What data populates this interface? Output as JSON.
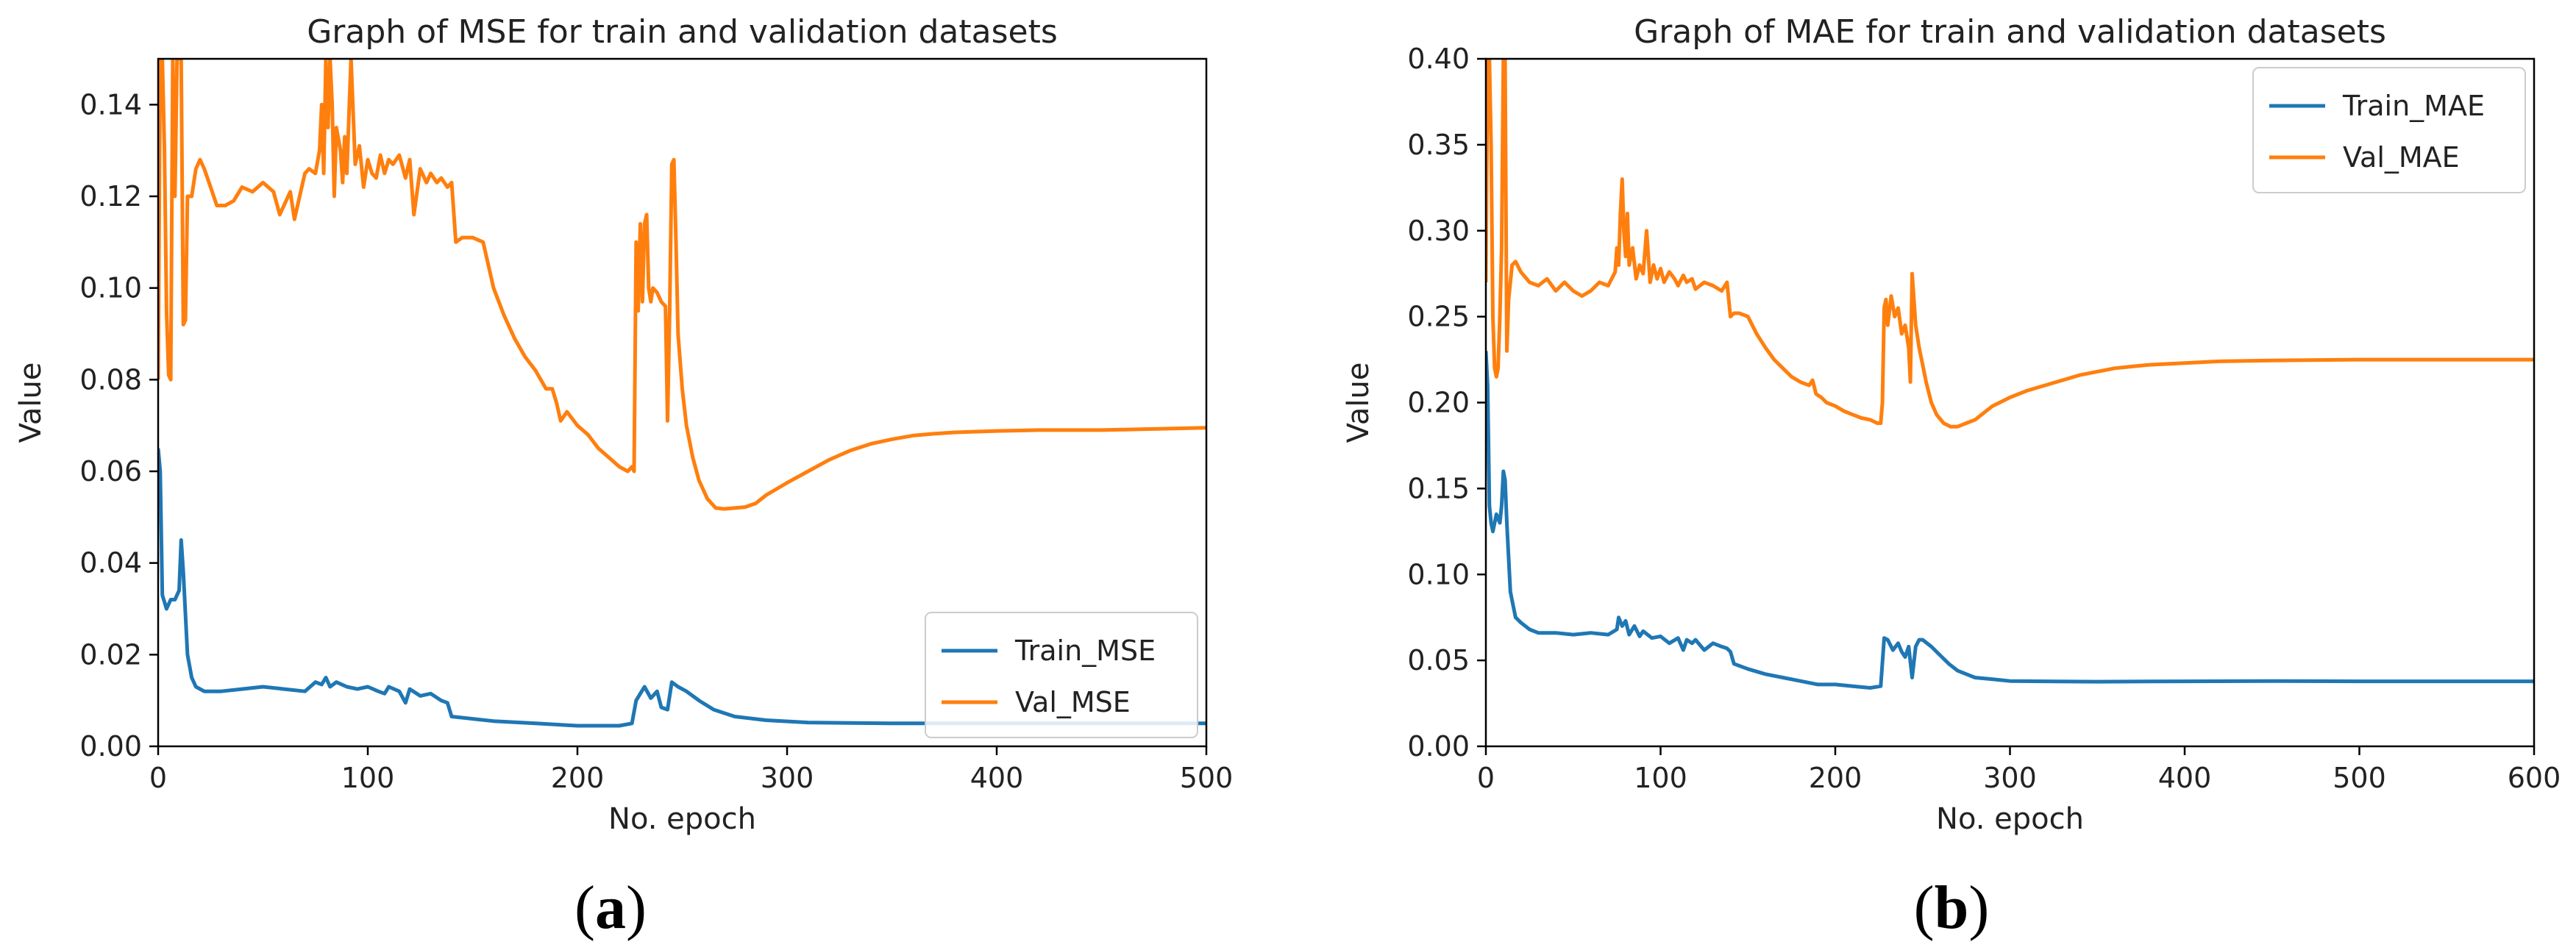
{
  "chart_data": [
    {
      "type": "line",
      "title": "Graph of MSE for train and validation datasets",
      "xlabel": "No. epoch",
      "ylabel": "Value",
      "xlim": [
        0,
        500
      ],
      "ylim": [
        0,
        0.15
      ],
      "xticks": [
        0,
        100,
        200,
        300,
        400,
        500
      ],
      "xtick_labels": [
        "0",
        "100",
        "200",
        "300",
        "400",
        "500"
      ],
      "yticks": [
        0,
        0.02,
        0.04,
        0.06,
        0.08,
        0.1,
        0.12,
        0.14
      ],
      "ytick_labels": [
        "0.00",
        "0.02",
        "0.04",
        "0.06",
        "0.08",
        "0.10",
        "0.12",
        "0.14"
      ],
      "legend_position": "lower-right",
      "panel_label": "a",
      "series": [
        {
          "name": "Train_MSE",
          "color": "#1f77b4",
          "x": [
            0,
            1,
            2,
            4,
            6,
            8,
            10,
            11,
            12,
            14,
            16,
            18,
            22,
            30,
            40,
            50,
            60,
            70,
            75,
            78,
            80,
            82,
            85,
            90,
            95,
            100,
            105,
            108,
            110,
            115,
            118,
            120,
            125,
            130,
            135,
            138,
            140,
            150,
            160,
            180,
            200,
            220,
            226,
            228,
            230,
            232,
            235,
            238,
            240,
            243,
            245,
            248,
            252,
            258,
            265,
            275,
            290,
            310,
            350,
            400,
            450,
            500
          ],
          "y": [
            0.065,
            0.06,
            0.033,
            0.03,
            0.032,
            0.032,
            0.034,
            0.045,
            0.038,
            0.02,
            0.015,
            0.013,
            0.012,
            0.012,
            0.0125,
            0.013,
            0.0125,
            0.012,
            0.014,
            0.0135,
            0.015,
            0.013,
            0.014,
            0.013,
            0.0125,
            0.013,
            0.012,
            0.0115,
            0.013,
            0.012,
            0.0095,
            0.0125,
            0.011,
            0.0115,
            0.01,
            0.0095,
            0.0065,
            0.006,
            0.0055,
            0.005,
            0.0045,
            0.0045,
            0.005,
            0.01,
            0.0115,
            0.013,
            0.0105,
            0.012,
            0.0085,
            0.008,
            0.014,
            0.013,
            0.012,
            0.01,
            0.008,
            0.0065,
            0.0057,
            0.0052,
            0.005,
            0.005,
            0.005,
            0.005
          ]
        },
        {
          "name": "Val_MSE",
          "color": "#ff7f0e",
          "x": [
            0,
            1,
            2,
            3,
            4,
            5,
            6,
            7,
            8,
            9,
            10,
            11,
            12,
            13,
            14,
            16,
            18,
            20,
            22,
            25,
            28,
            32,
            36,
            40,
            45,
            50,
            55,
            58,
            60,
            63,
            65,
            68,
            70,
            72,
            75,
            77,
            78,
            79,
            80,
            81,
            82,
            83,
            84,
            85,
            87,
            88,
            89,
            90,
            92,
            94,
            96,
            98,
            100,
            102,
            104,
            106,
            108,
            110,
            112,
            115,
            118,
            120,
            122,
            125,
            128,
            130,
            133,
            135,
            138,
            140,
            142,
            145,
            148,
            150,
            155,
            160,
            165,
            170,
            175,
            180,
            185,
            186,
            188,
            190,
            192,
            195,
            200,
            205,
            210,
            215,
            220,
            224,
            226,
            227,
            228,
            229,
            230,
            231,
            232,
            233,
            234,
            235,
            236,
            238,
            240,
            242,
            243,
            244,
            245,
            246,
            247,
            248,
            250,
            252,
            255,
            258,
            262,
            266,
            270,
            275,
            280,
            285,
            290,
            300,
            310,
            320,
            330,
            340,
            350,
            360,
            370,
            380,
            400,
            420,
            450,
            500
          ],
          "y": [
            0.08,
            0.15,
            0.15,
            0.13,
            0.095,
            0.081,
            0.08,
            0.15,
            0.12,
            0.15,
            0.15,
            0.15,
            0.092,
            0.093,
            0.12,
            0.12,
            0.126,
            0.128,
            0.126,
            0.122,
            0.118,
            0.118,
            0.119,
            0.122,
            0.121,
            0.123,
            0.121,
            0.116,
            0.118,
            0.121,
            0.115,
            0.121,
            0.125,
            0.126,
            0.125,
            0.13,
            0.14,
            0.125,
            0.15,
            0.135,
            0.15,
            0.14,
            0.12,
            0.135,
            0.13,
            0.123,
            0.133,
            0.125,
            0.15,
            0.127,
            0.131,
            0.122,
            0.128,
            0.125,
            0.124,
            0.129,
            0.125,
            0.128,
            0.127,
            0.129,
            0.124,
            0.128,
            0.116,
            0.126,
            0.123,
            0.125,
            0.123,
            0.124,
            0.122,
            0.123,
            0.11,
            0.111,
            0.111,
            0.111,
            0.11,
            0.1,
            0.094,
            0.089,
            0.085,
            0.082,
            0.078,
            0.078,
            0.078,
            0.075,
            0.071,
            0.073,
            0.07,
            0.068,
            0.065,
            0.063,
            0.061,
            0.06,
            0.061,
            0.06,
            0.11,
            0.095,
            0.114,
            0.097,
            0.114,
            0.116,
            0.1,
            0.097,
            0.1,
            0.099,
            0.097,
            0.096,
            0.071,
            0.095,
            0.127,
            0.128,
            0.11,
            0.09,
            0.078,
            0.07,
            0.063,
            0.058,
            0.054,
            0.052,
            0.0518,
            0.052,
            0.0522,
            0.053,
            0.0548,
            0.0575,
            0.06,
            0.0625,
            0.0645,
            0.066,
            0.067,
            0.0678,
            0.0682,
            0.0685,
            0.0688,
            0.069,
            0.069,
            0.0695
          ]
        }
      ]
    },
    {
      "type": "line",
      "title": "Graph of MAE for train and validation datasets",
      "xlabel": "No. epoch",
      "ylabel": "Value",
      "xlim": [
        0,
        600
      ],
      "ylim": [
        0,
        0.4
      ],
      "xticks": [
        0,
        100,
        200,
        300,
        400,
        500,
        600
      ],
      "xtick_labels": [
        "0",
        "100",
        "200",
        "300",
        "400",
        "500",
        "600"
      ],
      "yticks": [
        0,
        0.05,
        0.1,
        0.15,
        0.2,
        0.25,
        0.3,
        0.35,
        0.4
      ],
      "ytick_labels": [
        "0.00",
        "0.05",
        "0.10",
        "0.15",
        "0.20",
        "0.25",
        "0.30",
        "0.35",
        "0.40"
      ],
      "legend_position": "top-right",
      "panel_label": "b",
      "series": [
        {
          "name": "Train_MAE",
          "color": "#1f77b4",
          "x": [
            0,
            1,
            2,
            3,
            4,
            5,
            6,
            8,
            9,
            10,
            11,
            12,
            13,
            14,
            15,
            17,
            20,
            25,
            30,
            40,
            50,
            60,
            70,
            75,
            76,
            78,
            80,
            82,
            85,
            88,
            90,
            95,
            100,
            105,
            110,
            113,
            115,
            118,
            120,
            125,
            130,
            135,
            138,
            140,
            142,
            150,
            160,
            170,
            180,
            190,
            200,
            210,
            220,
            226,
            228,
            230,
            233,
            236,
            238,
            240,
            242,
            244,
            246,
            248,
            250,
            255,
            260,
            265,
            270,
            275,
            280,
            290,
            300,
            320,
            350,
            400,
            450,
            500,
            550,
            600
          ],
          "y": [
            0.23,
            0.21,
            0.14,
            0.13,
            0.125,
            0.13,
            0.135,
            0.13,
            0.14,
            0.16,
            0.155,
            0.13,
            0.11,
            0.09,
            0.085,
            0.075,
            0.072,
            0.068,
            0.066,
            0.066,
            0.065,
            0.066,
            0.065,
            0.068,
            0.075,
            0.07,
            0.073,
            0.065,
            0.07,
            0.064,
            0.067,
            0.063,
            0.064,
            0.06,
            0.063,
            0.056,
            0.062,
            0.06,
            0.062,
            0.056,
            0.06,
            0.058,
            0.057,
            0.055,
            0.048,
            0.045,
            0.042,
            0.04,
            0.038,
            0.036,
            0.036,
            0.035,
            0.034,
            0.035,
            0.063,
            0.062,
            0.056,
            0.06,
            0.055,
            0.052,
            0.058,
            0.04,
            0.058,
            0.062,
            0.062,
            0.058,
            0.053,
            0.048,
            0.044,
            0.042,
            0.04,
            0.039,
            0.038,
            0.0378,
            0.0376,
            0.0378,
            0.038,
            0.0378,
            0.0378,
            0.0378
          ]
        },
        {
          "name": "Val_MAE",
          "color": "#ff7f0e",
          "x": [
            0,
            1,
            2,
            3,
            4,
            5,
            6,
            7,
            8,
            9,
            10,
            11,
            12,
            13,
            14,
            15,
            17,
            20,
            25,
            30,
            35,
            40,
            45,
            50,
            55,
            60,
            65,
            70,
            72,
            74,
            75,
            76,
            77,
            78,
            79,
            80,
            81,
            82,
            84,
            86,
            88,
            90,
            92,
            94,
            96,
            98,
            100,
            102,
            105,
            108,
            110,
            113,
            115,
            118,
            120,
            125,
            130,
            135,
            138,
            140,
            142,
            145,
            150,
            155,
            160,
            165,
            170,
            175,
            180,
            185,
            187,
            189,
            192,
            195,
            200,
            205,
            210,
            215,
            220,
            224,
            226,
            227,
            228,
            229,
            230,
            232,
            234,
            236,
            238,
            240,
            242,
            243,
            244,
            245,
            246,
            248,
            250,
            252,
            255,
            258,
            262,
            266,
            270,
            275,
            280,
            285,
            290,
            300,
            310,
            320,
            330,
            340,
            350,
            360,
            370,
            380,
            400,
            420,
            450,
            500,
            550,
            600
          ],
          "y": [
            0.27,
            0.4,
            0.4,
            0.35,
            0.25,
            0.22,
            0.215,
            0.22,
            0.25,
            0.29,
            0.4,
            0.4,
            0.23,
            0.26,
            0.27,
            0.28,
            0.282,
            0.276,
            0.27,
            0.268,
            0.272,
            0.265,
            0.27,
            0.265,
            0.262,
            0.265,
            0.27,
            0.268,
            0.272,
            0.276,
            0.29,
            0.28,
            0.31,
            0.33,
            0.3,
            0.285,
            0.31,
            0.28,
            0.29,
            0.272,
            0.28,
            0.275,
            0.3,
            0.27,
            0.28,
            0.272,
            0.278,
            0.27,
            0.276,
            0.272,
            0.268,
            0.274,
            0.27,
            0.272,
            0.266,
            0.27,
            0.268,
            0.265,
            0.27,
            0.25,
            0.252,
            0.252,
            0.25,
            0.24,
            0.232,
            0.225,
            0.22,
            0.215,
            0.212,
            0.21,
            0.213,
            0.205,
            0.203,
            0.2,
            0.198,
            0.195,
            0.193,
            0.191,
            0.19,
            0.188,
            0.188,
            0.2,
            0.255,
            0.26,
            0.245,
            0.262,
            0.25,
            0.255,
            0.24,
            0.245,
            0.232,
            0.212,
            0.275,
            0.26,
            0.245,
            0.232,
            0.222,
            0.212,
            0.2,
            0.193,
            0.188,
            0.186,
            0.186,
            0.188,
            0.19,
            0.194,
            0.198,
            0.203,
            0.207,
            0.21,
            0.213,
            0.216,
            0.218,
            0.22,
            0.221,
            0.222,
            0.223,
            0.224,
            0.2245,
            0.225,
            0.225,
            0.225
          ]
        }
      ]
    }
  ]
}
